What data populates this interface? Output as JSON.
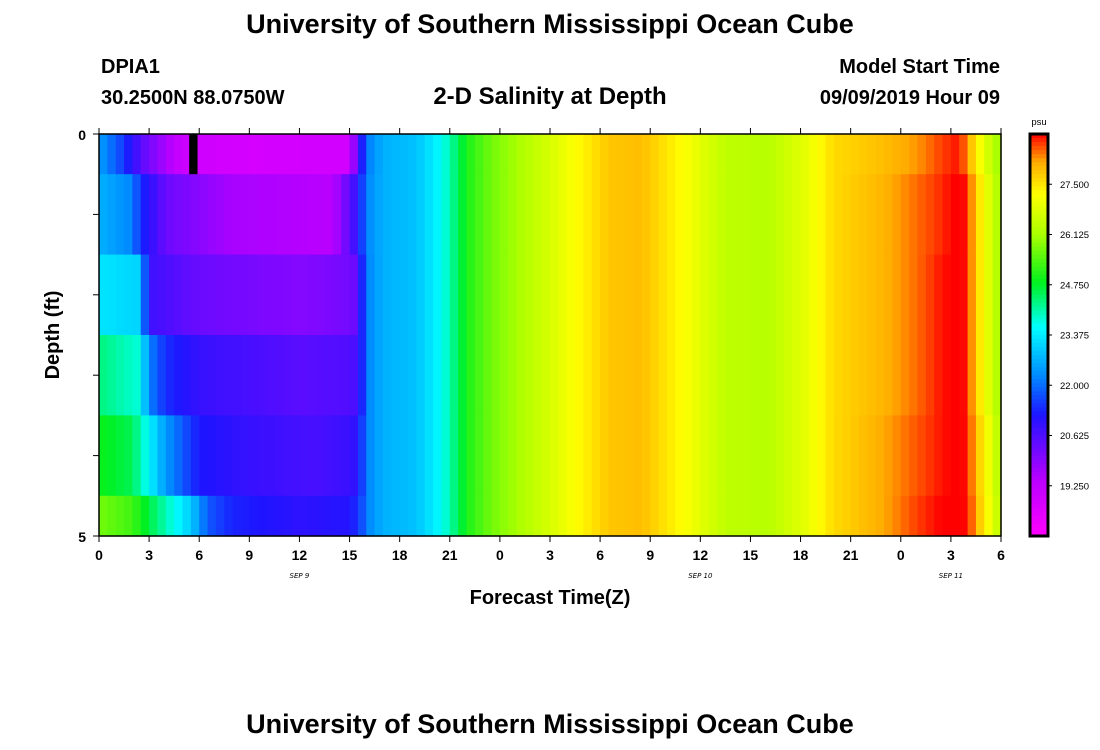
{
  "header": {
    "title": "University of Southern Mississippi Ocean Cube",
    "station": "DPIA1",
    "coords": "30.2500N 88.0750W",
    "subtitle": "2-D Salinity at Depth",
    "model_label": "Model Start Time",
    "model_time": "09/09/2019 Hour 09"
  },
  "footer": {
    "title": "University of Southern Mississippi Ocean Cube"
  },
  "chart_data": {
    "type": "heatmap",
    "title": "2-D Salinity at Depth",
    "xlabel": "Forecast Time(Z)",
    "ylabel": "Depth (ft)",
    "ylim": [
      0,
      5
    ],
    "y_ticks": [
      "0",
      "5"
    ],
    "x_ticks": [
      "0",
      "3",
      "6",
      "9",
      "12",
      "15",
      "18",
      "21",
      "0",
      "3",
      "6",
      "9",
      "12",
      "15",
      "18",
      "21",
      "0",
      "3",
      "6"
    ],
    "x_date_labels": [
      {
        "text": "SEP 9",
        "at_hour": 12
      },
      {
        "text": "SEP 10",
        "at_hour": 36
      },
      {
        "text": "SEP 11",
        "at_hour": 51
      }
    ],
    "x_range_hours": [
      0,
      54
    ],
    "colorbar": {
      "units": "psu",
      "range": [
        17.875,
        28.875
      ],
      "tick_labels": [
        "27.500",
        "26.125",
        "24.750",
        "23.375",
        "22.000",
        "20.625",
        "19.250"
      ],
      "tick_values": [
        27.5,
        26.125,
        24.75,
        23.375,
        22.0,
        20.625,
        19.25
      ]
    },
    "depth_layers": [
      {
        "depth": [
          0.0,
          0.5
        ],
        "profile": [
          [
            0,
            22.5
          ],
          [
            1.5,
            21.5
          ],
          [
            2.5,
            20.5
          ],
          [
            5,
            19.0
          ],
          [
            9,
            18.8
          ],
          [
            15,
            18.9
          ],
          [
            15.6,
            21.0
          ],
          [
            16.2,
            22.2
          ],
          [
            17,
            22.7
          ],
          [
            19,
            22.9
          ],
          [
            20.5,
            23.6
          ],
          [
            21.3,
            24.3
          ],
          [
            22.2,
            25.1
          ],
          [
            23.5,
            25.7
          ],
          [
            26,
            26.4
          ],
          [
            28.5,
            27.2
          ],
          [
            30.5,
            27.8
          ],
          [
            32.5,
            27.9
          ],
          [
            35,
            27.2
          ],
          [
            37.5,
            26.4
          ],
          [
            40,
            26.3
          ],
          [
            42,
            26.8
          ],
          [
            44,
            27.6
          ],
          [
            47,
            27.9
          ],
          [
            49,
            28.2
          ],
          [
            50.5,
            28.6
          ],
          [
            51.5,
            28.8
          ],
          [
            52,
            28.2
          ],
          [
            52.5,
            27.4
          ],
          [
            53,
            26.9
          ],
          [
            53.6,
            26.2
          ],
          [
            54,
            26.0
          ]
        ]
      },
      {
        "depth": [
          0.5,
          1.5
        ],
        "profile": [
          [
            0,
            22.7
          ],
          [
            2.0,
            22.2
          ],
          [
            2.4,
            21.5
          ],
          [
            4,
            20.3
          ],
          [
            8,
            19.6
          ],
          [
            14,
            19.4
          ],
          [
            15.5,
            21.0
          ],
          [
            16,
            22.2
          ],
          [
            17,
            22.7
          ],
          [
            19,
            22.9
          ],
          [
            20.5,
            23.6
          ],
          [
            21.3,
            24.3
          ],
          [
            22.2,
            25.1
          ],
          [
            23.5,
            25.7
          ],
          [
            26,
            26.4
          ],
          [
            28.5,
            27.2
          ],
          [
            30.5,
            27.8
          ],
          [
            32.5,
            27.9
          ],
          [
            35,
            27.2
          ],
          [
            37.5,
            26.4
          ],
          [
            40,
            26.3
          ],
          [
            42,
            26.8
          ],
          [
            44,
            27.6
          ],
          [
            47,
            28.0
          ],
          [
            49,
            28.4
          ],
          [
            50.5,
            28.7
          ],
          [
            51.2,
            28.9
          ],
          [
            51.7,
            28.9
          ],
          [
            52.2,
            28.3
          ],
          [
            52.7,
            27.5
          ],
          [
            53.2,
            26.9
          ],
          [
            53.6,
            26.4
          ],
          [
            54,
            26.1
          ]
        ]
      },
      {
        "depth": [
          1.5,
          2.5
        ],
        "profile": [
          [
            0,
            23.3
          ],
          [
            2.4,
            23.1
          ],
          [
            2.8,
            21.6
          ],
          [
            3.2,
            20.8
          ],
          [
            6,
            20.3
          ],
          [
            12,
            20.0
          ],
          [
            15.2,
            20.2
          ],
          [
            15.6,
            21.0
          ],
          [
            16.1,
            22.2
          ],
          [
            17,
            22.7
          ],
          [
            19,
            22.9
          ],
          [
            20.5,
            23.6
          ],
          [
            21.3,
            24.3
          ],
          [
            22.2,
            25.1
          ],
          [
            23.5,
            25.7
          ],
          [
            26,
            26.4
          ],
          [
            28.5,
            27.2
          ],
          [
            30.5,
            27.8
          ],
          [
            32.5,
            27.9
          ],
          [
            35,
            27.2
          ],
          [
            37.5,
            26.4
          ],
          [
            40,
            26.3
          ],
          [
            42,
            26.8
          ],
          [
            44,
            27.6
          ],
          [
            47,
            28.0
          ],
          [
            49,
            28.4
          ],
          [
            50.5,
            28.8
          ],
          [
            51.2,
            28.9
          ],
          [
            51.7,
            28.9
          ],
          [
            52.2,
            28.3
          ],
          [
            52.7,
            27.5
          ],
          [
            53.2,
            26.9
          ],
          [
            53.6,
            26.4
          ],
          [
            54,
            26.1
          ]
        ]
      },
      {
        "depth": [
          2.5,
          3.5
        ],
        "profile": [
          [
            0,
            24.3
          ],
          [
            2.4,
            23.8
          ],
          [
            3.0,
            22.2
          ],
          [
            4,
            21.4
          ],
          [
            6,
            20.9
          ],
          [
            12,
            20.5
          ],
          [
            15.2,
            20.6
          ],
          [
            15.6,
            21.0
          ],
          [
            16.1,
            22.2
          ],
          [
            17,
            22.7
          ],
          [
            19,
            22.9
          ],
          [
            20.5,
            23.6
          ],
          [
            21.3,
            24.3
          ],
          [
            22.2,
            25.1
          ],
          [
            23.5,
            25.7
          ],
          [
            26,
            26.4
          ],
          [
            28.5,
            27.2
          ],
          [
            30.5,
            27.8
          ],
          [
            32.5,
            27.9
          ],
          [
            35,
            27.2
          ],
          [
            37.5,
            26.4
          ],
          [
            40,
            26.3
          ],
          [
            42,
            26.8
          ],
          [
            44,
            27.6
          ],
          [
            47,
            28.0
          ],
          [
            49,
            28.4
          ],
          [
            50.5,
            28.8
          ],
          [
            51.2,
            28.9
          ],
          [
            51.7,
            28.9
          ],
          [
            52.2,
            28.3
          ],
          [
            52.7,
            27.5
          ],
          [
            53.2,
            26.9
          ],
          [
            53.6,
            26.4
          ],
          [
            54,
            26.1
          ]
        ]
      },
      {
        "depth": [
          3.5,
          4.5
        ],
        "profile": [
          [
            0,
            24.9
          ],
          [
            2.0,
            24.5
          ],
          [
            3.0,
            23.5
          ],
          [
            4,
            22.4
          ],
          [
            6,
            21.2
          ],
          [
            9,
            20.9
          ],
          [
            13,
            20.7
          ],
          [
            15.2,
            20.9
          ],
          [
            15.6,
            21.3
          ],
          [
            16.1,
            22.2
          ],
          [
            17,
            22.7
          ],
          [
            19,
            22.9
          ],
          [
            20.5,
            23.6
          ],
          [
            21.3,
            24.3
          ],
          [
            22.2,
            25.1
          ],
          [
            23.5,
            25.7
          ],
          [
            26,
            26.4
          ],
          [
            28.5,
            27.2
          ],
          [
            30.5,
            27.8
          ],
          [
            32.5,
            27.9
          ],
          [
            35,
            27.2
          ],
          [
            37.5,
            26.4
          ],
          [
            40,
            26.3
          ],
          [
            42,
            26.8
          ],
          [
            44,
            27.6
          ],
          [
            47,
            28.1
          ],
          [
            49,
            28.5
          ],
          [
            50.5,
            28.8
          ],
          [
            51.2,
            28.9
          ],
          [
            51.7,
            28.9
          ],
          [
            52.2,
            28.4
          ],
          [
            52.7,
            27.7
          ],
          [
            53.2,
            27.1
          ],
          [
            53.6,
            26.6
          ],
          [
            54,
            26.2
          ]
        ]
      },
      {
        "depth": [
          4.5,
          5.0
        ],
        "profile": [
          [
            0,
            25.7
          ],
          [
            2.0,
            25.3
          ],
          [
            3.0,
            24.6
          ],
          [
            4,
            24.0
          ],
          [
            5.5,
            23.0
          ],
          [
            6.5,
            21.8
          ],
          [
            8,
            21.3
          ],
          [
            12,
            21.0
          ],
          [
            14.8,
            21.1
          ],
          [
            15.5,
            21.4
          ],
          [
            16.1,
            22.2
          ],
          [
            17,
            22.7
          ],
          [
            19,
            22.9
          ],
          [
            20.5,
            23.6
          ],
          [
            21.3,
            24.3
          ],
          [
            22.2,
            25.1
          ],
          [
            23.5,
            25.7
          ],
          [
            26,
            26.4
          ],
          [
            28.5,
            27.2
          ],
          [
            30.5,
            27.8
          ],
          [
            32.5,
            27.9
          ],
          [
            35,
            27.2
          ],
          [
            37.5,
            26.4
          ],
          [
            40,
            26.3
          ],
          [
            42,
            26.8
          ],
          [
            44,
            27.6
          ],
          [
            47,
            28.1
          ],
          [
            49,
            28.6
          ],
          [
            50.5,
            28.9
          ],
          [
            51.2,
            28.9
          ],
          [
            51.7,
            28.9
          ],
          [
            52.2,
            28.5
          ],
          [
            52.7,
            27.8
          ],
          [
            53.2,
            27.2
          ],
          [
            53.6,
            26.7
          ],
          [
            54,
            26.3
          ]
        ]
      }
    ],
    "missing_cell": {
      "hours": [
        5.4,
        5.9
      ],
      "depth": [
        0.0,
        0.5
      ]
    },
    "grid": false,
    "legend": "colorbar-right"
  }
}
